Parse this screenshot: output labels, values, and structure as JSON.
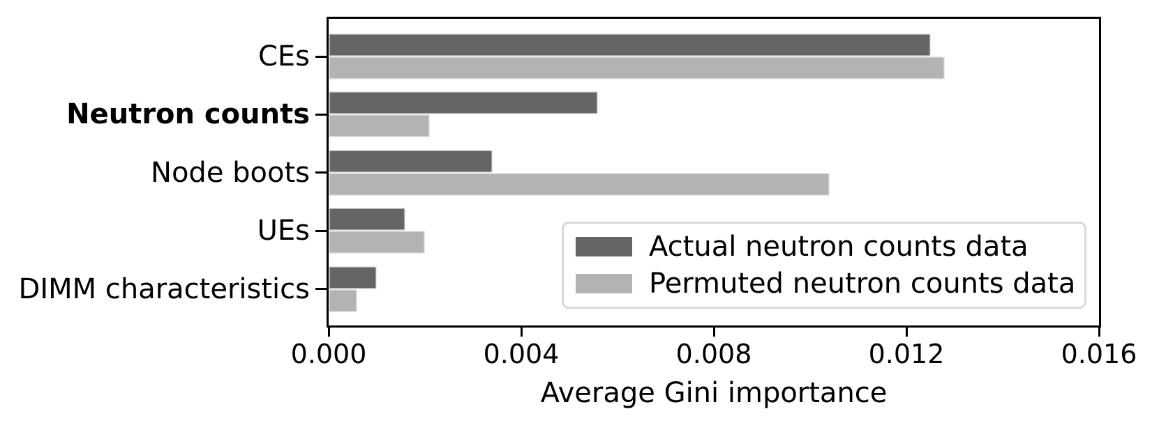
{
  "chart_data": {
    "type": "bar",
    "orientation": "horizontal",
    "title": "",
    "xlabel": "Average Gini importance",
    "ylabel": "",
    "xlim": [
      0,
      0.016
    ],
    "xticks": [
      "0.000",
      "0.004",
      "0.008",
      "0.012",
      "0.016"
    ],
    "grid": false,
    "categories": [
      "CEs",
      "Neutron counts",
      "Node boots",
      "UEs",
      "DIMM characteristics"
    ],
    "bold_category": "Neutron counts",
    "series": [
      {
        "name": "Actual neutron counts data",
        "color": "#656565",
        "values": [
          0.0125,
          0.0056,
          0.0034,
          0.0016,
          0.001
        ]
      },
      {
        "name": "Permuted neutron counts data",
        "color": "#b3b3b3",
        "values": [
          0.0128,
          0.0021,
          0.0104,
          0.002,
          0.0006
        ]
      }
    ],
    "legend": {
      "position": "lower right",
      "entries": [
        "Actual neutron counts data",
        "Permuted neutron counts data"
      ]
    }
  },
  "colors": {
    "bar_actual": "#656565",
    "bar_permuted": "#b3b3b3",
    "bar_edge": "#e9e9e9",
    "axis_frame": "#000000",
    "legend_border": "#d8d8d8",
    "background": "#ffffff",
    "text": "#000000"
  }
}
